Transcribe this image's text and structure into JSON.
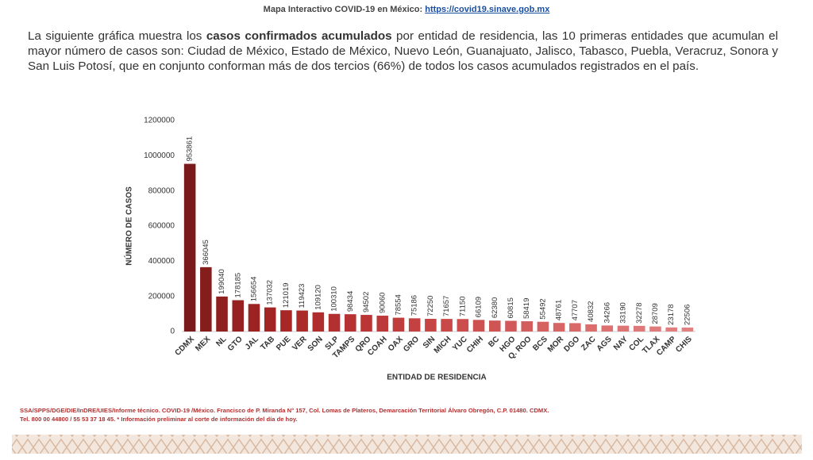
{
  "header": {
    "text": "Mapa Interactivo COVID-19 en México: ",
    "link": "https://covid19.sinave.gob.mx"
  },
  "paragraph": [
    "La siguiente gráfica muestra los ",
    "casos confirmados acumulados",
    " por entidad de residencia, las 10 primeras entidades que acumulan el mayor número de casos son: Ciudad de México, Estado de México, Nuevo León, Guanajuato, Jalisco, Tabasco, Puebla, Veracruz, Sonora y San Luis Potosí, que en conjunto conforman más de dos tercios (66%) de todos los casos acumulados registrados en el país."
  ],
  "chart_data": {
    "type": "bar",
    "x_label": "ENTIDAD DE RESIDENCIA",
    "y_label": "NÚMERO DE CASOS",
    "categories": [
      "CDMX",
      "MEX",
      "NL",
      "GTO",
      "JAL",
      "TAB",
      "PUE",
      "VER",
      "SON",
      "SLP",
      "TAMPS",
      "QRO",
      "COAH",
      "OAX",
      "GRO",
      "SIN",
      "MICH",
      "YUC",
      "CHIH",
      "BC",
      "HGO",
      "Q. ROO",
      "BCS",
      "MOR",
      "DGO",
      "ZAC",
      "AGS",
      "NAY",
      "COL",
      "TLAX",
      "CAMP",
      "CHIS"
    ],
    "values": [
      953861,
      366045,
      199040,
      178185,
      156654,
      137032,
      121019,
      119423,
      109120,
      100310,
      98434,
      94502,
      90060,
      78554,
      75186,
      72250,
      71657,
      71150,
      66109,
      62380,
      60815,
      58419,
      55492,
      48761,
      47707,
      40832,
      34266,
      33190,
      32278,
      28709,
      23178,
      22506
    ],
    "colors": [
      "#7a1a1a",
      "#861d1d",
      "#901f1f",
      "#972121",
      "#9d2323",
      "#a22525",
      "#a72727",
      "#ab2a2a",
      "#af2d2d",
      "#b33030",
      "#b73333",
      "#ba3636",
      "#bd3939",
      "#c03d3d",
      "#c34141",
      "#c64545",
      "#c94949",
      "#cb4d4d",
      "#cd5151",
      "#cf5555",
      "#d15959",
      "#d35d5d",
      "#d56161",
      "#d76565",
      "#d96969",
      "#db6d6d",
      "#dd7171",
      "#de7575",
      "#df7878",
      "#e07b7b",
      "#e17e7e",
      "#e28181"
    ],
    "ylim": [
      0,
      1200000
    ],
    "yticks": [
      0,
      200000,
      400000,
      600000,
      800000,
      1000000,
      1200000
    ],
    "grid": false
  },
  "footer": [
    "SSA/SPPS/DGE/DIE/InDRE/UIES/Informe técnico. COVID-19 /México. Francisco de P. Miranda N° 157, Col. Lomas de Plateros, Demarcación Territorial Álvaro Obregón, C.P. 01480. CDMX.",
    "Tel. 800 00 44800 / 55 53 37 18 45. * Información preliminar al corte de información del día de hoy."
  ]
}
